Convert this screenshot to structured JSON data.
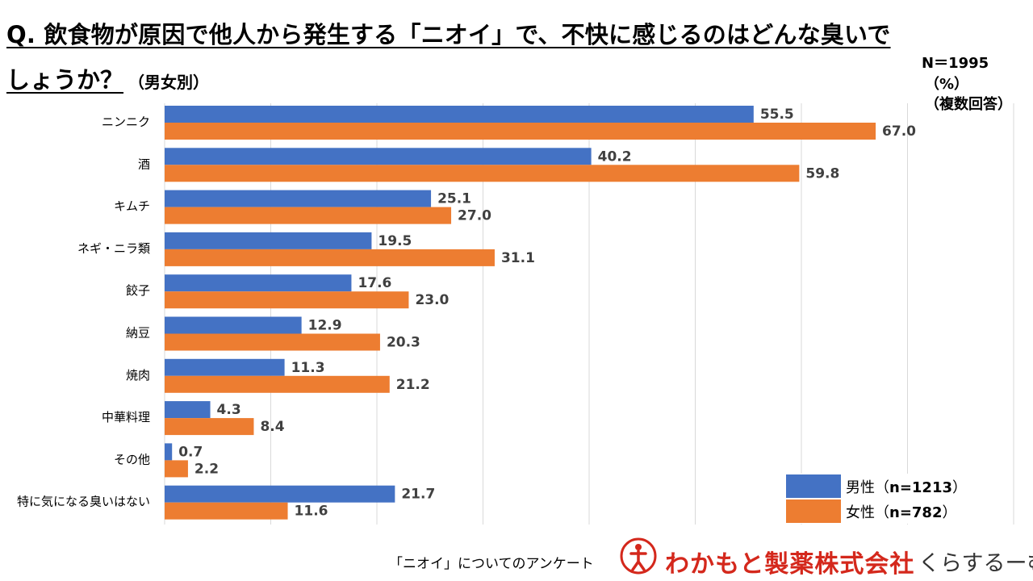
{
  "header": {
    "title_line1": "Q. 飲食物が原因で他人から発生する「ニオイ」で、不快に感じるのはどんな臭いで",
    "title_line2": "しょうか？",
    "title_sub": "（男女別）",
    "sample_size": "N＝1995",
    "unit": "（%）",
    "note": "（複数回答）"
  },
  "colors": {
    "male": "#4472C4",
    "female": "#ED7D31",
    "grid": "#D9D9D9",
    "label": "#404040"
  },
  "chart_data": {
    "type": "bar",
    "orientation": "horizontal",
    "title": "Q. 飲食物が原因で他人から発生する「ニオイ」で、不快に感じるのはどんな臭いでしょうか？（男女別）",
    "categories": [
      "ニンニク",
      "酒",
      "キムチ",
      "ネギ・ニラ類",
      "餃子",
      "納豆",
      "焼肉",
      "中華料理",
      "その他",
      "特に気になる臭いはない"
    ],
    "series": [
      {
        "name": "男性（n=1213）",
        "values": [
          55.5,
          40.2,
          25.1,
          19.5,
          17.6,
          12.9,
          11.3,
          4.3,
          0.7,
          21.7
        ]
      },
      {
        "name": "女性（n=782）",
        "values": [
          67.0,
          59.8,
          27.0,
          31.1,
          23.0,
          20.3,
          21.2,
          8.4,
          2.2,
          11.6
        ]
      }
    ],
    "xlim": [
      0,
      80
    ],
    "grid": true,
    "data_labels": true,
    "legend_position": "bottom-right"
  },
  "legend": {
    "male": {
      "label": "男性（",
      "n": "n=1213",
      "close": "）"
    },
    "female": {
      "label": "女性（",
      "n": "n=782",
      "close": "）"
    }
  },
  "footer": {
    "caption": "「ニオイ」についてのアンケート",
    "company": "わかもと製薬株式会社",
    "brand": "くらするーむ"
  }
}
